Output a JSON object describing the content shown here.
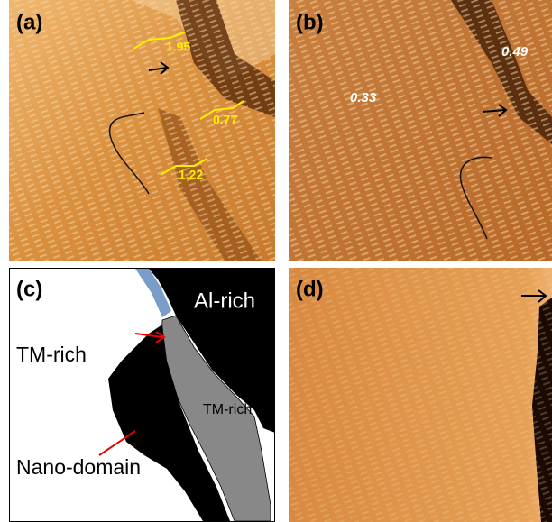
{
  "panels": [
    {
      "label": "(a)",
      "annotations": [
        "1.95",
        "0.77",
        "1.22"
      ]
    },
    {
      "label": "(b)",
      "annotations": [
        "0.49",
        "0.33"
      ]
    },
    {
      "label": "(c)",
      "annotations": [
        "Al-rich",
        "TM-rich",
        "TM-rich",
        "Nano-domain"
      ]
    },
    {
      "label": "(d)"
    }
  ]
}
